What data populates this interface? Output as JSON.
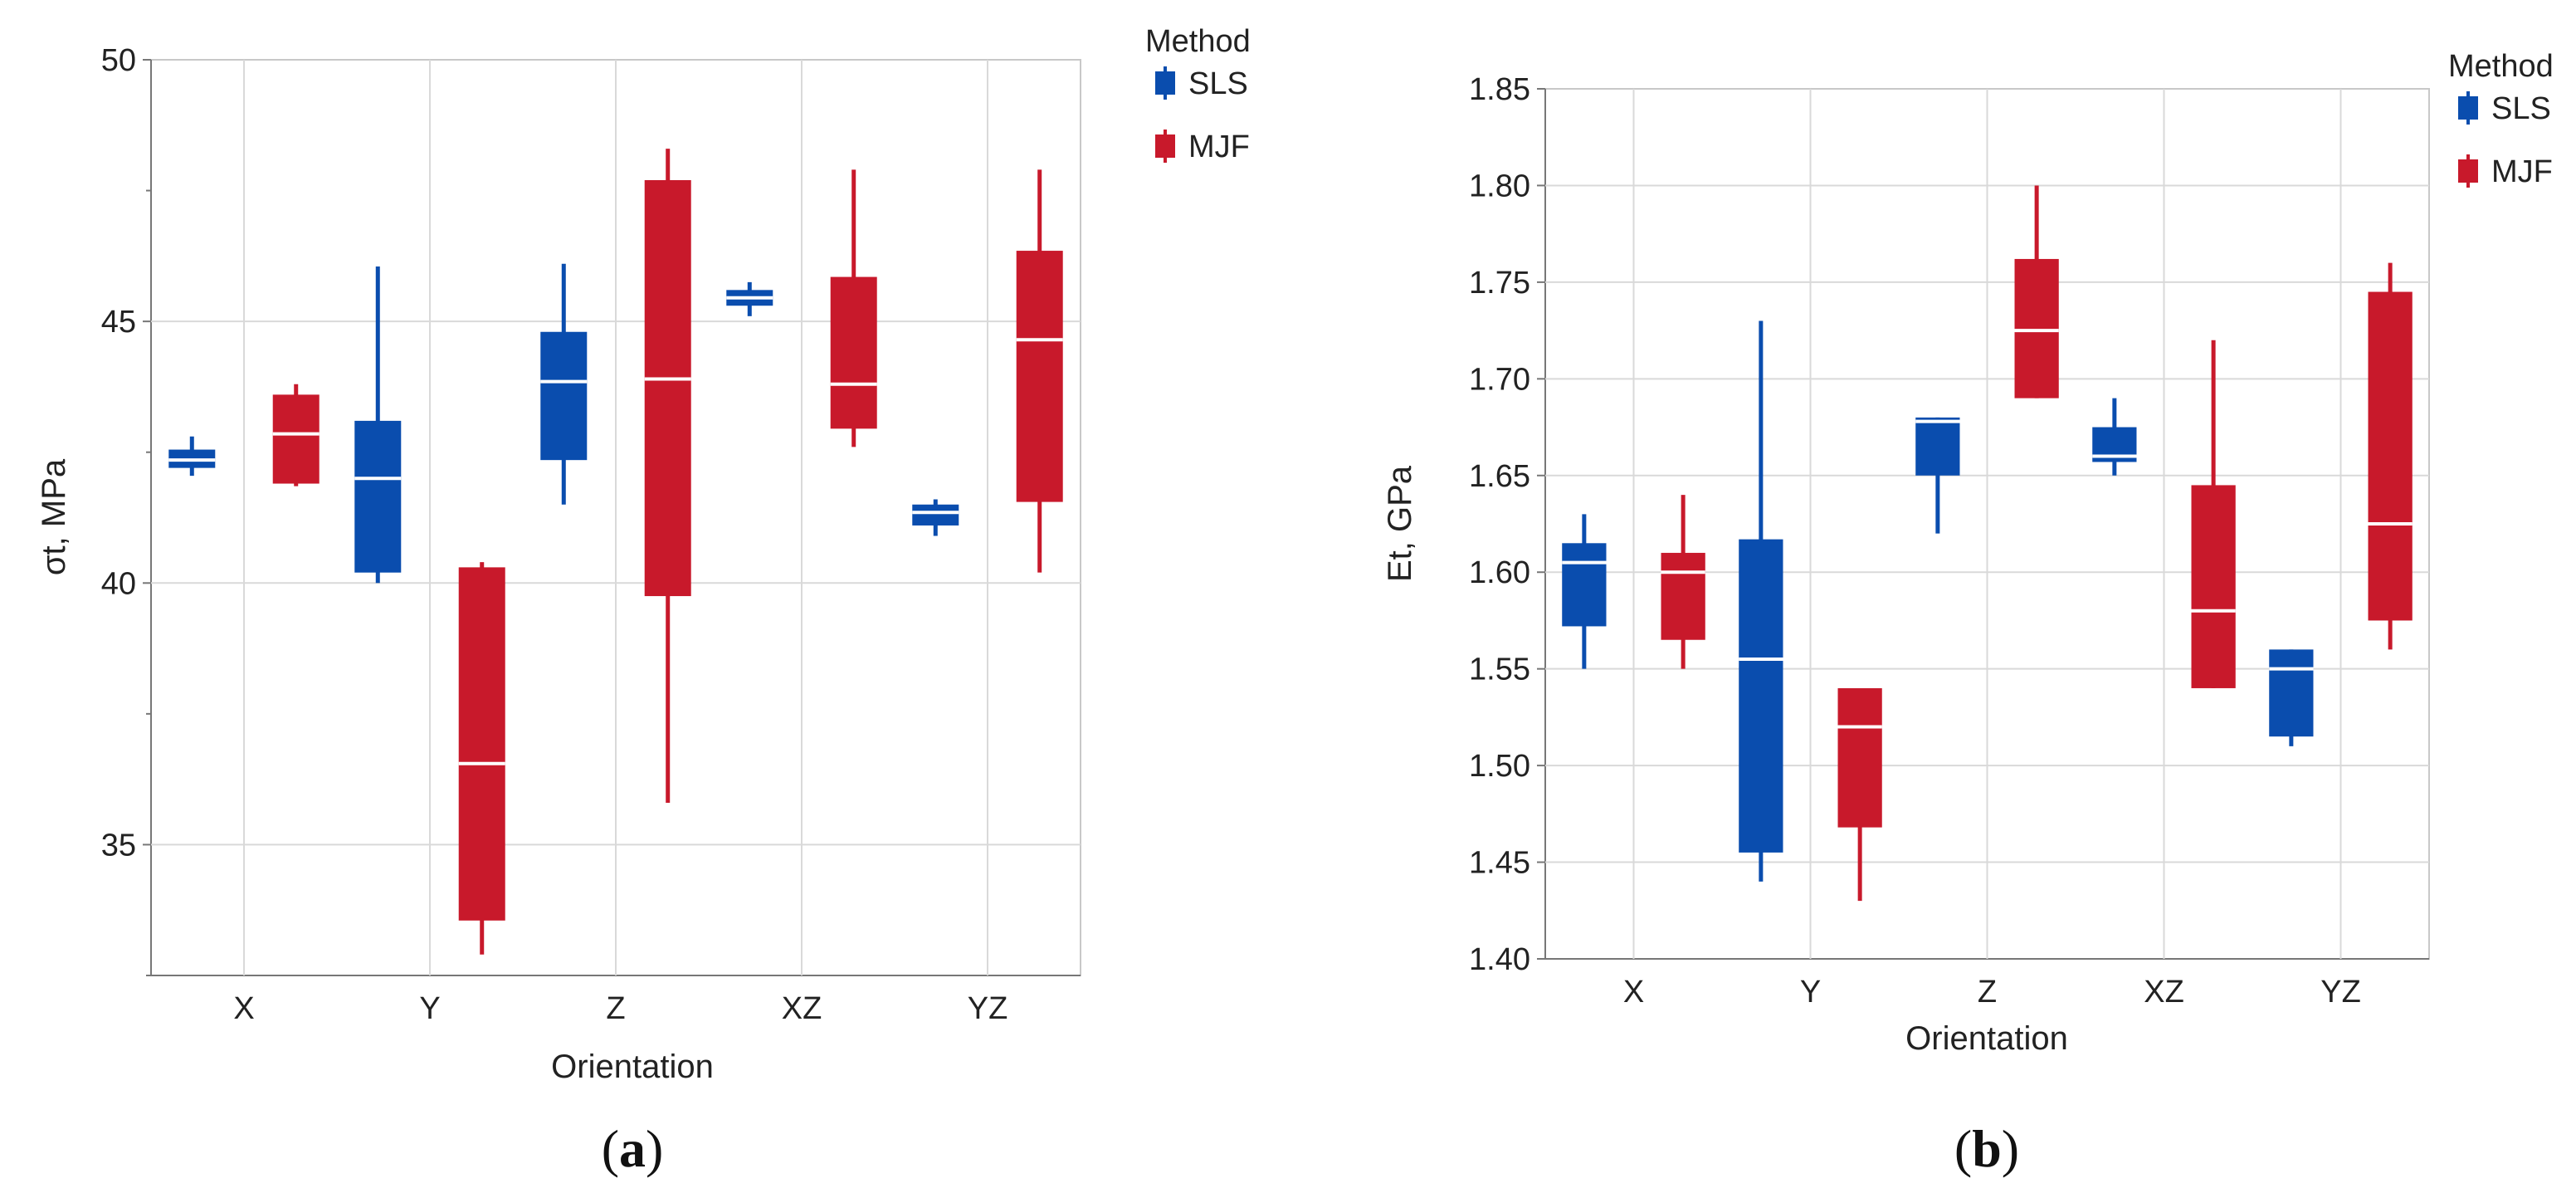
{
  "chart_data": [
    {
      "type": "box",
      "panel_label_open": "(",
      "panel_label_letter": "a",
      "panel_label_close": ")",
      "xlabel": "Orientation",
      "ylabel": "σt, MPa",
      "ylim": [
        32.5,
        50
      ],
      "yticks": [
        "35",
        "40",
        "45",
        "50"
      ],
      "ytick_values": [
        35,
        40,
        45,
        50
      ],
      "minor_yticks": [
        32.5,
        37.5,
        42.5,
        47.5
      ],
      "categories": [
        "X",
        "Y",
        "Z",
        "XZ",
        "YZ"
      ],
      "legend": {
        "title": "Method",
        "entries": [
          "SLS",
          "MJF"
        ]
      },
      "series": [
        {
          "name": "SLS",
          "color": "#0A4DAE",
          "boxes": [
            {
              "min": 42.05,
              "q1": 42.2,
              "median": 42.35,
              "q3": 42.55,
              "max": 42.8
            },
            {
              "min": 40.0,
              "q1": 40.2,
              "median": 42.0,
              "q3": 43.1,
              "max": 46.05
            },
            {
              "min": 41.5,
              "q1": 42.35,
              "median": 43.85,
              "q3": 44.8,
              "max": 46.1
            },
            {
              "min": 45.1,
              "q1": 45.3,
              "median": 45.45,
              "q3": 45.6,
              "max": 45.75
            },
            {
              "min": 40.9,
              "q1": 41.1,
              "median": 41.35,
              "q3": 41.5,
              "max": 41.6
            }
          ]
        },
        {
          "name": "MJF",
          "color": "#C8192B",
          "boxes": [
            {
              "min": 41.85,
              "q1": 41.9,
              "median": 42.85,
              "q3": 43.6,
              "max": 43.8
            },
            {
              "min": 32.9,
              "q1": 33.55,
              "median": 36.55,
              "q3": 40.3,
              "max": 40.4
            },
            {
              "min": 35.8,
              "q1": 39.75,
              "median": 43.9,
              "q3": 47.7,
              "max": 48.3
            },
            {
              "min": 42.6,
              "q1": 42.95,
              "median": 43.8,
              "q3": 45.85,
              "max": 47.9
            },
            {
              "min": 40.2,
              "q1": 41.55,
              "median": 44.65,
              "q3": 46.35,
              "max": 47.9
            }
          ]
        }
      ]
    },
    {
      "type": "box",
      "panel_label_open": "(",
      "panel_label_letter": "b",
      "panel_label_close": ")",
      "xlabel": "Orientation",
      "ylabel": "Et, GPa",
      "ylim": [
        1.4,
        1.85
      ],
      "yticks": [
        "1.40",
        "1.45",
        "1.50",
        "1.55",
        "1.60",
        "1.65",
        "1.70",
        "1.75",
        "1.80",
        "1.85"
      ],
      "ytick_values": [
        1.4,
        1.45,
        1.5,
        1.55,
        1.6,
        1.65,
        1.7,
        1.75,
        1.8,
        1.85
      ],
      "minor_yticks": [],
      "categories": [
        "X",
        "Y",
        "Z",
        "XZ",
        "YZ"
      ],
      "legend": {
        "title": "Method",
        "entries": [
          "SLS",
          "MJF"
        ]
      },
      "series": [
        {
          "name": "SLS",
          "color": "#0A4DAE",
          "boxes": [
            {
              "min": 1.55,
              "q1": 1.572,
              "median": 1.605,
              "q3": 1.615,
              "max": 1.63
            },
            {
              "min": 1.44,
              "q1": 1.455,
              "median": 1.555,
              "q3": 1.617,
              "max": 1.73
            },
            {
              "min": 1.62,
              "q1": 1.65,
              "median": 1.678,
              "q3": 1.68,
              "max": 1.68
            },
            {
              "min": 1.65,
              "q1": 1.657,
              "median": 1.66,
              "q3": 1.675,
              "max": 1.69
            },
            {
              "min": 1.51,
              "q1": 1.515,
              "median": 1.55,
              "q3": 1.56,
              "max": 1.56
            }
          ]
        },
        {
          "name": "MJF",
          "color": "#C8192B",
          "boxes": [
            {
              "min": 1.55,
              "q1": 1.565,
              "median": 1.6,
              "q3": 1.61,
              "max": 1.64
            },
            {
              "min": 1.43,
              "q1": 1.468,
              "median": 1.52,
              "q3": 1.54,
              "max": 1.54
            },
            {
              "min": 1.69,
              "q1": 1.69,
              "median": 1.725,
              "q3": 1.762,
              "max": 1.8
            },
            {
              "min": 1.54,
              "q1": 1.54,
              "median": 1.58,
              "q3": 1.645,
              "max": 1.72
            },
            {
              "min": 1.56,
              "q1": 1.575,
              "median": 1.625,
              "q3": 1.745,
              "max": 1.76
            }
          ]
        }
      ]
    }
  ]
}
